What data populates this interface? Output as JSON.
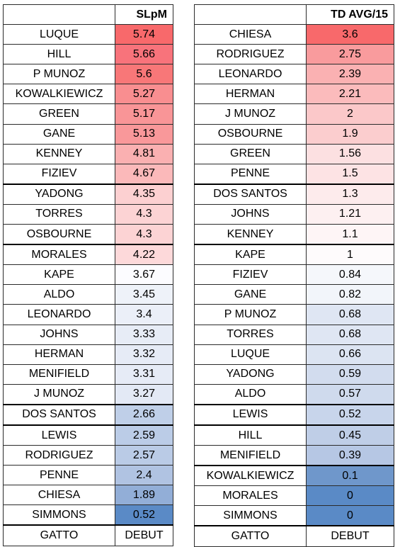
{
  "left": {
    "header": "SLpM",
    "rows": [
      {
        "name": "LUQUE",
        "value": "5.74",
        "bg": "#f8696b"
      },
      {
        "name": "HILL",
        "value": "5.66",
        "bg": "#f8737b"
      },
      {
        "name": "P MUNOZ",
        "value": "5.6",
        "bg": "#f87778"
      },
      {
        "name": "KOWALKIEWICZ",
        "value": "5.27",
        "bg": "#f98e90"
      },
      {
        "name": "GREEN",
        "value": "5.17",
        "bg": "#f99597"
      },
      {
        "name": "GANE",
        "value": "5.13",
        "bg": "#f9989a"
      },
      {
        "name": "KENNEY",
        "value": "4.81",
        "bg": "#fab0b1"
      },
      {
        "name": "FIZIEV",
        "value": "4.67",
        "bg": "#fbb9ba"
      },
      {
        "name": "YADONG",
        "value": "4.35",
        "bg": "#fcd0d1"
      },
      {
        "name": "TORRES",
        "value": "4.3",
        "bg": "#fcd3d4"
      },
      {
        "name": "OSBOURNE",
        "value": "4.3",
        "bg": "#fcd3d4"
      },
      {
        "name": "MORALES",
        "value": "4.22",
        "bg": "#fdd9da"
      },
      {
        "name": "KAPE",
        "value": "3.67",
        "bg": "#fcfcff"
      },
      {
        "name": "ALDO",
        "value": "3.45",
        "bg": "#eef2f9"
      },
      {
        "name": "LEONARDO",
        "value": "3.4",
        "bg": "#ebeff8"
      },
      {
        "name": "JOHNS",
        "value": "3.33",
        "bg": "#e7ecf6"
      },
      {
        "name": "HERMAN",
        "value": "3.32",
        "bg": "#e6ebf6"
      },
      {
        "name": "MENIFIELD",
        "value": "3.31",
        "bg": "#e6ebf6"
      },
      {
        "name": "J MUNOZ",
        "value": "3.27",
        "bg": "#e3e9f5"
      },
      {
        "name": "DOS SANTOS",
        "value": "2.66",
        "bg": "#bfcfe8"
      },
      {
        "name": "LEWIS",
        "value": "2.59",
        "bg": "#bbcce7"
      },
      {
        "name": "RODRIGUEZ",
        "value": "2.57",
        "bg": "#bacbe6"
      },
      {
        "name": "PENNE",
        "value": "2.4",
        "bg": "#b0c3e2"
      },
      {
        "name": "CHIESA",
        "value": "1.89",
        "bg": "#92aed7"
      },
      {
        "name": "SIMMONS",
        "value": "0.52",
        "bg": "#5a8ac6"
      },
      {
        "name": "GATTO",
        "value": "DEBUT",
        "bg": "#ffffff"
      }
    ]
  },
  "right": {
    "header": "TD AVG/15",
    "rows": [
      {
        "name": "CHIESA",
        "value": "3.6",
        "bg": "#f8696b"
      },
      {
        "name": "RODRIGUEZ",
        "value": "2.75",
        "bg": "#f99b9d"
      },
      {
        "name": "LEONARDO",
        "value": "2.39",
        "bg": "#fab1b2"
      },
      {
        "name": "HERMAN",
        "value": "2.21",
        "bg": "#fbbbbc"
      },
      {
        "name": "J MUNOZ",
        "value": "2",
        "bg": "#fbc8c9"
      },
      {
        "name": "OSBOURNE",
        "value": "1.9",
        "bg": "#fbcdce"
      },
      {
        "name": "GREEN",
        "value": "1.56",
        "bg": "#fce0e1"
      },
      {
        "name": "PENNE",
        "value": "1.5",
        "bg": "#fde3e4"
      },
      {
        "name": "DOS SANTOS",
        "value": "1.3",
        "bg": "#fdebec"
      },
      {
        "name": "JOHNS",
        "value": "1.21",
        "bg": "#fdf0f1"
      },
      {
        "name": "KENNEY",
        "value": "1.1",
        "bg": "#fef5f6"
      },
      {
        "name": "KAPE",
        "value": "1",
        "bg": "#fefbfc"
      },
      {
        "name": "FIZIEV",
        "value": "0.84",
        "bg": "#f5f7fb"
      },
      {
        "name": "GANE",
        "value": "0.82",
        "bg": "#f2f5fa"
      },
      {
        "name": "P MUNOZ",
        "value": "0.68",
        "bg": "#dfe6f3"
      },
      {
        "name": "TORRES",
        "value": "0.68",
        "bg": "#dfe6f3"
      },
      {
        "name": "LUQUE",
        "value": "0.66",
        "bg": "#dce4f2"
      },
      {
        "name": "YADONG",
        "value": "0.59",
        "bg": "#d2dcee"
      },
      {
        "name": "ALDO",
        "value": "0.57",
        "bg": "#cfdaed"
      },
      {
        "name": "LEWIS",
        "value": "0.52",
        "bg": "#c8d5eb"
      },
      {
        "name": "HILL",
        "value": "0.45",
        "bg": "#bfcee7"
      },
      {
        "name": "MENIFIELD",
        "value": "0.39",
        "bg": "#b6c7e4"
      },
      {
        "name": "KOWALKIEWICZ",
        "value": "0.1",
        "bg": "#6f97cb"
      },
      {
        "name": "MORALES",
        "value": "0",
        "bg": "#5a8ac6"
      },
      {
        "name": "SIMMONS",
        "value": "0",
        "bg": "#5a8ac6"
      },
      {
        "name": "GATTO",
        "value": "DEBUT",
        "bg": "#ffffff"
      }
    ]
  }
}
